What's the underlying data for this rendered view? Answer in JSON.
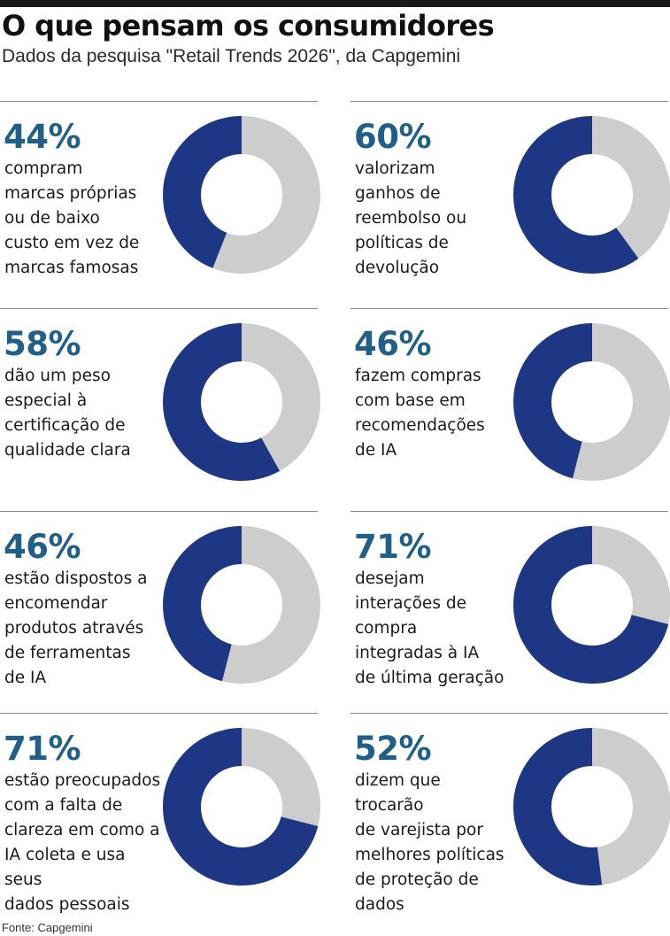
{
  "title": "O que pensam os consumidores",
  "subtitle": "Dados da pesquisa \"Retail Trends 2026\", da Capgemini",
  "source": "Fonte: Capgemini",
  "colors": {
    "accent_text": "#1f5f88",
    "filled": "#1d3784",
    "remainder": "#cdcdcd"
  },
  "chart_data": {
    "type": "pie",
    "variant": "donut-grid",
    "title": "O que pensam os consumidores",
    "subtitle": "Dados da pesquisa \"Retail Trends 2026\", da Capgemini",
    "items": [
      {
        "value": 44,
        "label": "44%",
        "lines": [
          "compram",
          "marcas próprias",
          "ou de baixo",
          "custo em vez de",
          "marcas famosas"
        ]
      },
      {
        "value": 60,
        "label": "60%",
        "lines": [
          "valorizam",
          "ganhos de",
          "reembolso ou",
          "políticas de",
          "devolução"
        ]
      },
      {
        "value": 58,
        "label": "58%",
        "lines": [
          "dão um peso",
          "especial à",
          "certificação de",
          "qualidade clara"
        ]
      },
      {
        "value": 46,
        "label": "46%",
        "lines": [
          "fazem compras",
          "com base em",
          "recomendações",
          "de IA"
        ]
      },
      {
        "value": 46,
        "label": "46%",
        "lines": [
          "estão dispostos a",
          "encomendar",
          "produtos através",
          "de ferramentas",
          "de IA"
        ]
      },
      {
        "value": 71,
        "label": "71%",
        "lines": [
          "desejam",
          "interações de",
          "compra",
          "integradas à IA",
          "de última geração"
        ]
      },
      {
        "value": 71,
        "label": "71%",
        "lines": [
          "estão preocupados",
          "com a falta de",
          "clareza em como a",
          "IA coleta e usa seus",
          "dados pessoais"
        ]
      },
      {
        "value": 52,
        "label": "52%",
        "lines": [
          "dizem que trocarão",
          "de varejista por",
          "melhores políticas",
          "de proteção de",
          "dados"
        ]
      }
    ]
  }
}
